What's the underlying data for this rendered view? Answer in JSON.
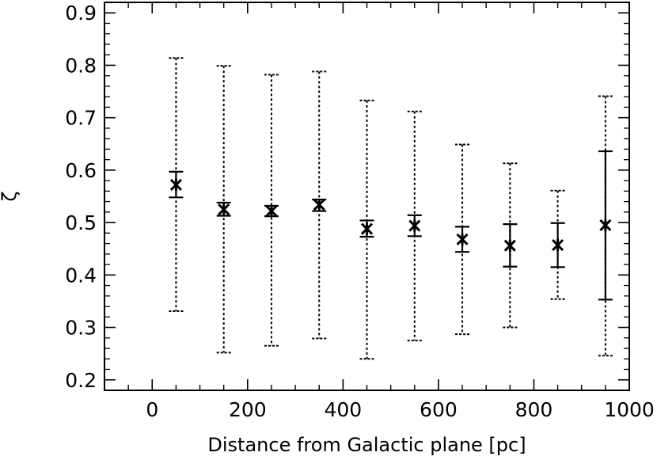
{
  "chart_data": {
    "type": "scatter",
    "title": "",
    "xlabel": "Distance from Galactic plane [pc]",
    "ylabel": "ζ",
    "xlim": [
      -100,
      1000
    ],
    "ylim": [
      0.18,
      0.92
    ],
    "x_ticks": [
      0,
      200,
      400,
      600,
      800,
      1000
    ],
    "y_ticks": [
      0.2,
      0.3,
      0.4,
      0.5,
      0.6,
      0.7,
      0.8,
      0.9
    ],
    "x_tick_labels": [
      "0",
      "200",
      "400",
      "600",
      "800",
      "1000"
    ],
    "y_tick_labels": [
      "0.2",
      "0.3",
      "0.4",
      "0.5",
      "0.6",
      "0.7",
      "0.8",
      "0.9"
    ],
    "grid": false,
    "legend": "none",
    "marker": "asterisk",
    "color": "#000000",
    "series": [
      {
        "x": [
          50,
          150,
          250,
          350,
          450,
          550,
          650,
          750,
          850,
          950
        ],
        "y": [
          0.572,
          0.525,
          0.522,
          0.534,
          0.488,
          0.494,
          0.468,
          0.456,
          0.457,
          0.495
        ],
        "err_solid_low": [
          0.548,
          0.513,
          0.512,
          0.522,
          0.473,
          0.474,
          0.444,
          0.416,
          0.415,
          0.353
        ],
        "err_solid_high": [
          0.597,
          0.538,
          0.532,
          0.544,
          0.504,
          0.514,
          0.492,
          0.497,
          0.499,
          0.636
        ],
        "err_dotted_low": [
          0.331,
          0.252,
          0.265,
          0.279,
          0.24,
          0.275,
          0.287,
          0.3,
          0.354,
          0.246
        ],
        "err_dotted_high": [
          0.814,
          0.799,
          0.782,
          0.788,
          0.733,
          0.712,
          0.649,
          0.613,
          0.561,
          0.741
        ]
      }
    ]
  }
}
